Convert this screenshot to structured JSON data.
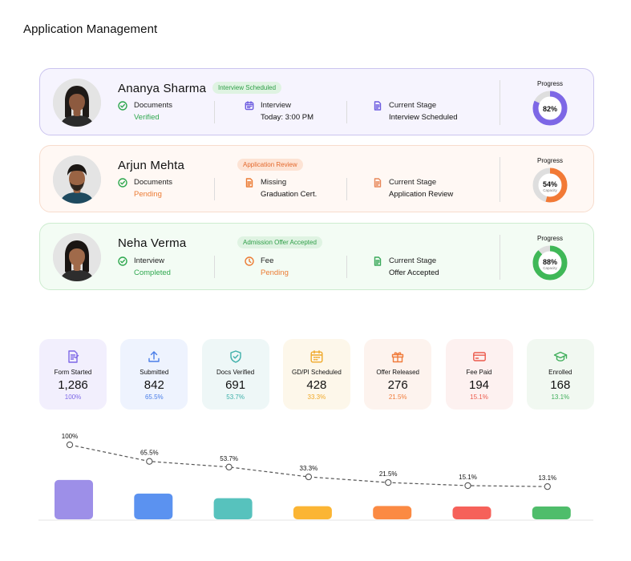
{
  "page": {
    "title": "Application Management"
  },
  "progress_label": "Progress",
  "capacity_label": "Capacity",
  "colors": {
    "purple": "#7d67e6",
    "orange": "#f27a36",
    "green": "#3fb857",
    "track": "#dedede"
  },
  "applicants": [
    {
      "name": "Ananya Sharma",
      "stage_badge": "Interview Scheduled",
      "info": [
        {
          "icon": "check-circle-icon",
          "label": "Documents",
          "value": "Verified",
          "tone": "green"
        },
        {
          "icon": "calendar-icon",
          "label": "Interview",
          "value": "Today: 3:00 PM",
          "tone": "dark"
        },
        {
          "icon": "document-icon",
          "label": "Current Stage",
          "value": "Interview Scheduled",
          "tone": "dark"
        }
      ],
      "progress": 82,
      "progress_text": "82%",
      "show_capacity": false,
      "color": "#7d67e6",
      "avatar": {
        "hair": "#1f1a17",
        "skin": "#8d5a3f",
        "shirt": "#2b2b2b"
      }
    },
    {
      "name": "Arjun Mehta",
      "stage_badge": "Application Review",
      "info": [
        {
          "icon": "check-circle-icon",
          "label": "Documents",
          "value": "Pending",
          "tone": "orange"
        },
        {
          "icon": "document-icon",
          "label": "Missing",
          "value": "Graduation Cert.",
          "tone": "dark"
        },
        {
          "icon": "document-icon",
          "label": "Current Stage",
          "value": "Application Review",
          "tone": "dark"
        }
      ],
      "progress": 54,
      "progress_text": "54%",
      "show_capacity": true,
      "color": "#f27a36",
      "avatar": {
        "hair": "#1b1714",
        "skin": "#9a6444",
        "shirt": "#1e4a5f"
      }
    },
    {
      "name": "Neha Verma",
      "stage_badge": "Admission Offer Accepted",
      "info": [
        {
          "icon": "check-circle-icon",
          "label": "Interview",
          "value": "Completed",
          "tone": "green"
        },
        {
          "icon": "clock-icon",
          "label": "Fee",
          "value": "Pending",
          "tone": "orange"
        },
        {
          "icon": "document-icon",
          "label": "Current Stage",
          "value": "Offer Accepted",
          "tone": "dark"
        }
      ],
      "progress": 88,
      "progress_text": "88%",
      "show_capacity": true,
      "color": "#3fb857",
      "avatar": {
        "hair": "#1a1512",
        "skin": "#a06a4a",
        "shirt": "#2d2d2d"
      }
    }
  ],
  "funnel": [
    {
      "label": "Form Started",
      "value": "1,286",
      "pct": "100%",
      "icon": "form-icon",
      "bg": "#f2effd",
      "accent": "#7d67e6"
    },
    {
      "label": "Submitted",
      "value": "842",
      "pct": "65.5%",
      "icon": "upload-icon",
      "bg": "#eef3fe",
      "accent": "#4a7ee8"
    },
    {
      "label": "Docs Verified",
      "value": "691",
      "pct": "53.7%",
      "icon": "shield-check-icon",
      "bg": "#eef7f7",
      "accent": "#3fb0aa"
    },
    {
      "label": "GD/PI Scheduled",
      "value": "428",
      "pct": "33.3%",
      "icon": "calendar-icon",
      "bg": "#fdf7ea",
      "accent": "#f0a92a"
    },
    {
      "label": "Offer Released",
      "value": "276",
      "pct": "21.5%",
      "icon": "gift-icon",
      "bg": "#fdf3ee",
      "accent": "#f07c3c"
    },
    {
      "label": "Fee Paid",
      "value": "194",
      "pct": "15.1%",
      "icon": "credit-card-icon",
      "bg": "#fdf1f0",
      "accent": "#ec5b4d"
    },
    {
      "label": "Enrolled",
      "value": "168",
      "pct": "13.1%",
      "icon": "graduation-cap-icon",
      "bg": "#f1f8f1",
      "accent": "#3fae5a"
    }
  ],
  "chart_data": {
    "type": "bar",
    "categories": [
      "Form Started",
      "Submitted",
      "Docs Verified",
      "GD/PI Scheduled",
      "Offer Released",
      "Fee Paid",
      "Enrolled"
    ],
    "values": [
      100,
      65.5,
      53.7,
      33.3,
      21.5,
      15.1,
      13.1
    ],
    "data_labels": [
      "100%",
      "65.5%",
      "53.7%",
      "33.3%",
      "21.5%",
      "15.1%",
      "13.1%"
    ],
    "bar_colors": [
      "#9d8fe8",
      "#5b92f0",
      "#57c2bd",
      "#fbb534",
      "#fb8a43",
      "#f6615a",
      "#4fbd6b"
    ],
    "overlay": "dashed-line-with-markers",
    "xlabel": "",
    "ylabel": "",
    "ylim": [
      0,
      100
    ],
    "grid": false,
    "legend": "none"
  }
}
